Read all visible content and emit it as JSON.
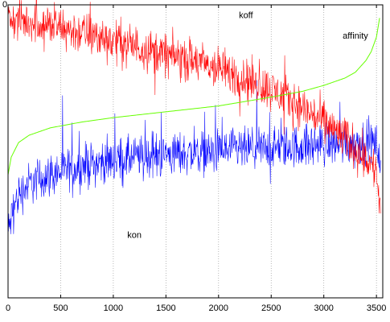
{
  "chart_data": {
    "type": "line",
    "title": "",
    "xlabel": "",
    "ylabel": "",
    "xlim": [
      0,
      3560
    ],
    "ylim": [
      0,
      10
    ],
    "grid": {
      "x": true,
      "y": false,
      "style": "dotted"
    },
    "x_ticks": [
      0,
      500,
      1000,
      1500,
      2000,
      2500,
      3000,
      3500
    ],
    "x_tick_labels": [
      "0",
      "500",
      "1000",
      "1500",
      "2000",
      "2500",
      "3000",
      "3500"
    ],
    "y_tick_labels": [
      "0"
    ],
    "annotations": [
      {
        "text": "koff",
        "x": 2260,
        "y": 9.55
      },
      {
        "text": "affinity",
        "x": 3300,
        "y": 8.85
      },
      {
        "text": "kon",
        "x": 1200,
        "y": 2.05
      }
    ],
    "series": [
      {
        "name": "koff",
        "color": "#ff0000",
        "x": [
          0,
          250,
          500,
          750,
          1000,
          1250,
          1500,
          1750,
          2000,
          2250,
          2500,
          2750,
          3000,
          3250,
          3400,
          3500,
          3540
        ],
        "y": [
          9.5,
          9.4,
          9.2,
          9.0,
          8.8,
          8.55,
          8.3,
          8.1,
          7.8,
          7.5,
          7.1,
          6.6,
          6.0,
          5.3,
          4.8,
          4.3,
          2.8
        ],
        "spread": [
          0.55,
          0.55,
          0.6,
          0.6,
          0.6,
          0.6,
          0.6,
          0.6,
          0.6,
          0.6,
          0.6,
          0.6,
          0.6,
          0.6,
          0.6,
          0.6,
          0.5
        ]
      },
      {
        "name": "kon",
        "color": "#0000ff",
        "x": [
          0,
          50,
          100,
          200,
          400,
          700,
          1000,
          1500,
          2000,
          2500,
          3000,
          3300,
          3500,
          3540
        ],
        "y": [
          2.2,
          3.0,
          3.5,
          3.9,
          4.2,
          4.5,
          4.7,
          4.9,
          5.0,
          5.1,
          5.25,
          5.3,
          5.3,
          4.5
        ],
        "spread": [
          0.6,
          0.6,
          0.6,
          0.6,
          0.6,
          0.6,
          0.6,
          0.6,
          0.6,
          0.6,
          0.6,
          0.6,
          0.5,
          0.4
        ]
      },
      {
        "name": "affinity",
        "color": "#66ff00",
        "x": [
          0,
          30,
          100,
          200,
          400,
          700,
          1000,
          1500,
          2000,
          2500,
          2800,
          3000,
          3200,
          3300,
          3400,
          3450,
          3500,
          3530
        ],
        "y": [
          4.2,
          4.8,
          5.3,
          5.55,
          5.8,
          6.0,
          6.15,
          6.35,
          6.55,
          6.85,
          7.05,
          7.25,
          7.5,
          7.7,
          8.1,
          8.4,
          8.9,
          9.55
        ]
      }
    ]
  }
}
